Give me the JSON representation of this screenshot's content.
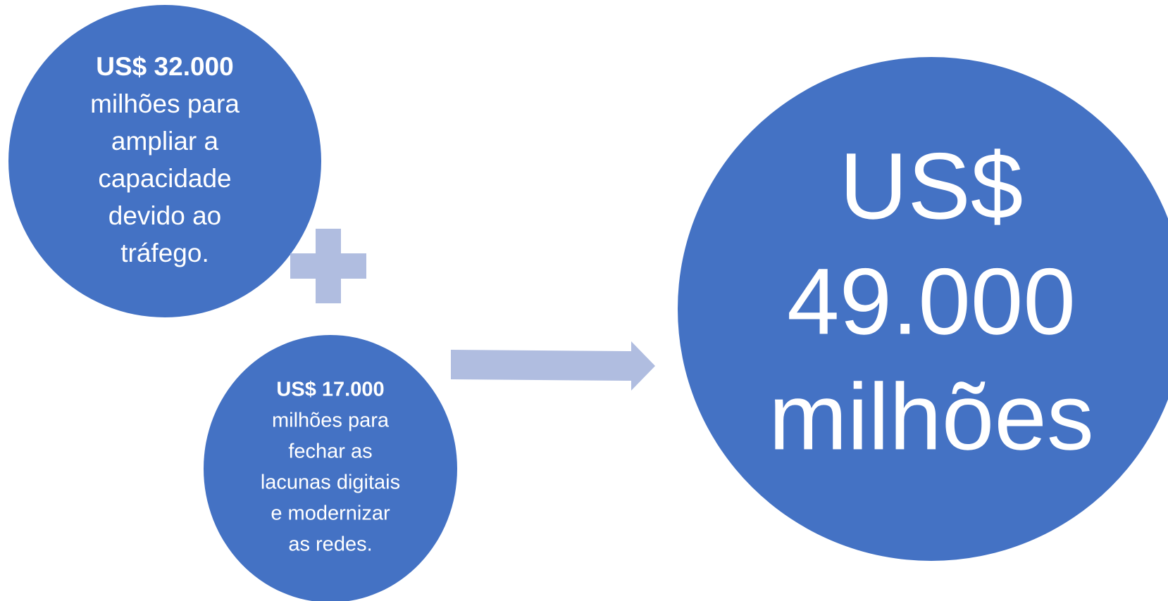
{
  "nodes": [
    {
      "amount": "US$ 32.000",
      "lines": [
        "milhões para",
        "ampliar a",
        "capacidade",
        "devido ao",
        "tráfego."
      ]
    },
    {
      "amount": "US$ 17.000",
      "lines": [
        "milhões para",
        "fechar as",
        "lacunas digitais",
        "e modernizar",
        "as redes."
      ]
    }
  ],
  "total": {
    "lines": [
      "US$",
      "49.000",
      "milhões"
    ]
  }
}
